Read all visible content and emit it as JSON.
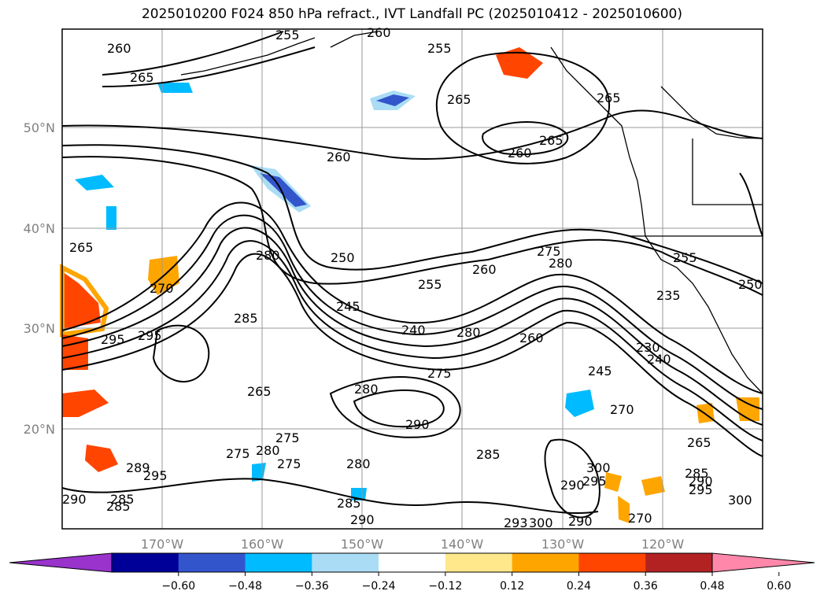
{
  "title": "2025010200 F024 850 hPa refract., IVT Landfall PC (2025010412 - 2025010600)",
  "lat_labels": [
    "50°N",
    "40°N",
    "30°N",
    "20°N"
  ],
  "lon_labels": [
    "170°W",
    "160°W",
    "150°W",
    "140°W",
    "130°W",
    "120°W"
  ],
  "contour_labels": [
    "260",
    "255",
    "260",
    "255",
    "265",
    "265",
    "265",
    "260",
    "260",
    "265",
    "265",
    "270",
    "280",
    "285",
    "250",
    "255",
    "260",
    "275",
    "280",
    "245",
    "240",
    "280",
    "260",
    "255",
    "250",
    "235",
    "230",
    "240",
    "245",
    "270",
    "295",
    "295",
    "265",
    "280",
    "275",
    "275",
    "280",
    "275",
    "285",
    "275",
    "280",
    "285",
    "285",
    "290",
    "295",
    "300",
    "293",
    "300",
    "290",
    "290",
    "270",
    "265",
    "285",
    "290",
    "295",
    "300",
    "295",
    "289",
    "290",
    "285",
    "290"
  ],
  "colorbar": {
    "ticks": [
      "−0.60",
      "−0.48",
      "−0.36",
      "−0.24",
      "−0.12",
      "0.12",
      "0.24",
      "0.36",
      "0.48",
      "0.60"
    ],
    "colors": [
      "#9933cc",
      "#000099",
      "#3355cc",
      "#00bbff",
      "#aaddf5",
      "#ffffff",
      "#ffe88c",
      "#ffa500",
      "#ff4500",
      "#b22222",
      "#ff88aa"
    ]
  }
}
